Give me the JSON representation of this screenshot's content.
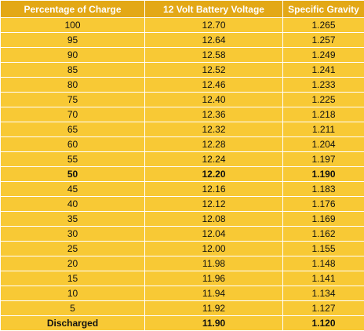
{
  "table": {
    "headers": [
      "Percentage of Charge",
      "12 Volt Battery Voltage",
      "Specific Gravity"
    ],
    "rows": [
      {
        "charge": "100",
        "voltage": "12.70",
        "gravity": "1.265",
        "bold": false
      },
      {
        "charge": "95",
        "voltage": "12.64",
        "gravity": "1.257",
        "bold": false
      },
      {
        "charge": "90",
        "voltage": "12.58",
        "gravity": "1.249",
        "bold": false
      },
      {
        "charge": "85",
        "voltage": "12.52",
        "gravity": "1.241",
        "bold": false
      },
      {
        "charge": "80",
        "voltage": "12.46",
        "gravity": "1.233",
        "bold": false
      },
      {
        "charge": "75",
        "voltage": "12.40",
        "gravity": "1.225",
        "bold": false
      },
      {
        "charge": "70",
        "voltage": "12.36",
        "gravity": "1.218",
        "bold": false
      },
      {
        "charge": "65",
        "voltage": "12.32",
        "gravity": "1.211",
        "bold": false
      },
      {
        "charge": "60",
        "voltage": "12.28",
        "gravity": "1.204",
        "bold": false
      },
      {
        "charge": "55",
        "voltage": "12.24",
        "gravity": "1.197",
        "bold": false
      },
      {
        "charge": "50",
        "voltage": "12.20",
        "gravity": "1.190",
        "bold": true
      },
      {
        "charge": "45",
        "voltage": "12.16",
        "gravity": "1.183",
        "bold": false
      },
      {
        "charge": "40",
        "voltage": "12.12",
        "gravity": "1.176",
        "bold": false
      },
      {
        "charge": "35",
        "voltage": "12.08",
        "gravity": "1.169",
        "bold": false
      },
      {
        "charge": "30",
        "voltage": "12.04",
        "gravity": "1.162",
        "bold": false
      },
      {
        "charge": "25",
        "voltage": "12.00",
        "gravity": "1.155",
        "bold": false
      },
      {
        "charge": "20",
        "voltage": "11.98",
        "gravity": "1.148",
        "bold": false
      },
      {
        "charge": "15",
        "voltage": "11.96",
        "gravity": "1.141",
        "bold": false
      },
      {
        "charge": "10",
        "voltage": "11.94",
        "gravity": "1.134",
        "bold": false
      },
      {
        "charge": "5",
        "voltage": "11.92",
        "gravity": "1.127",
        "bold": false
      },
      {
        "charge": "Discharged",
        "voltage": "11.90",
        "gravity": "1.120",
        "bold": true
      }
    ]
  },
  "colors": {
    "header_bg": "#e3a816",
    "cell_bg": "#f8c935",
    "grid_lines": "#ffffff"
  }
}
